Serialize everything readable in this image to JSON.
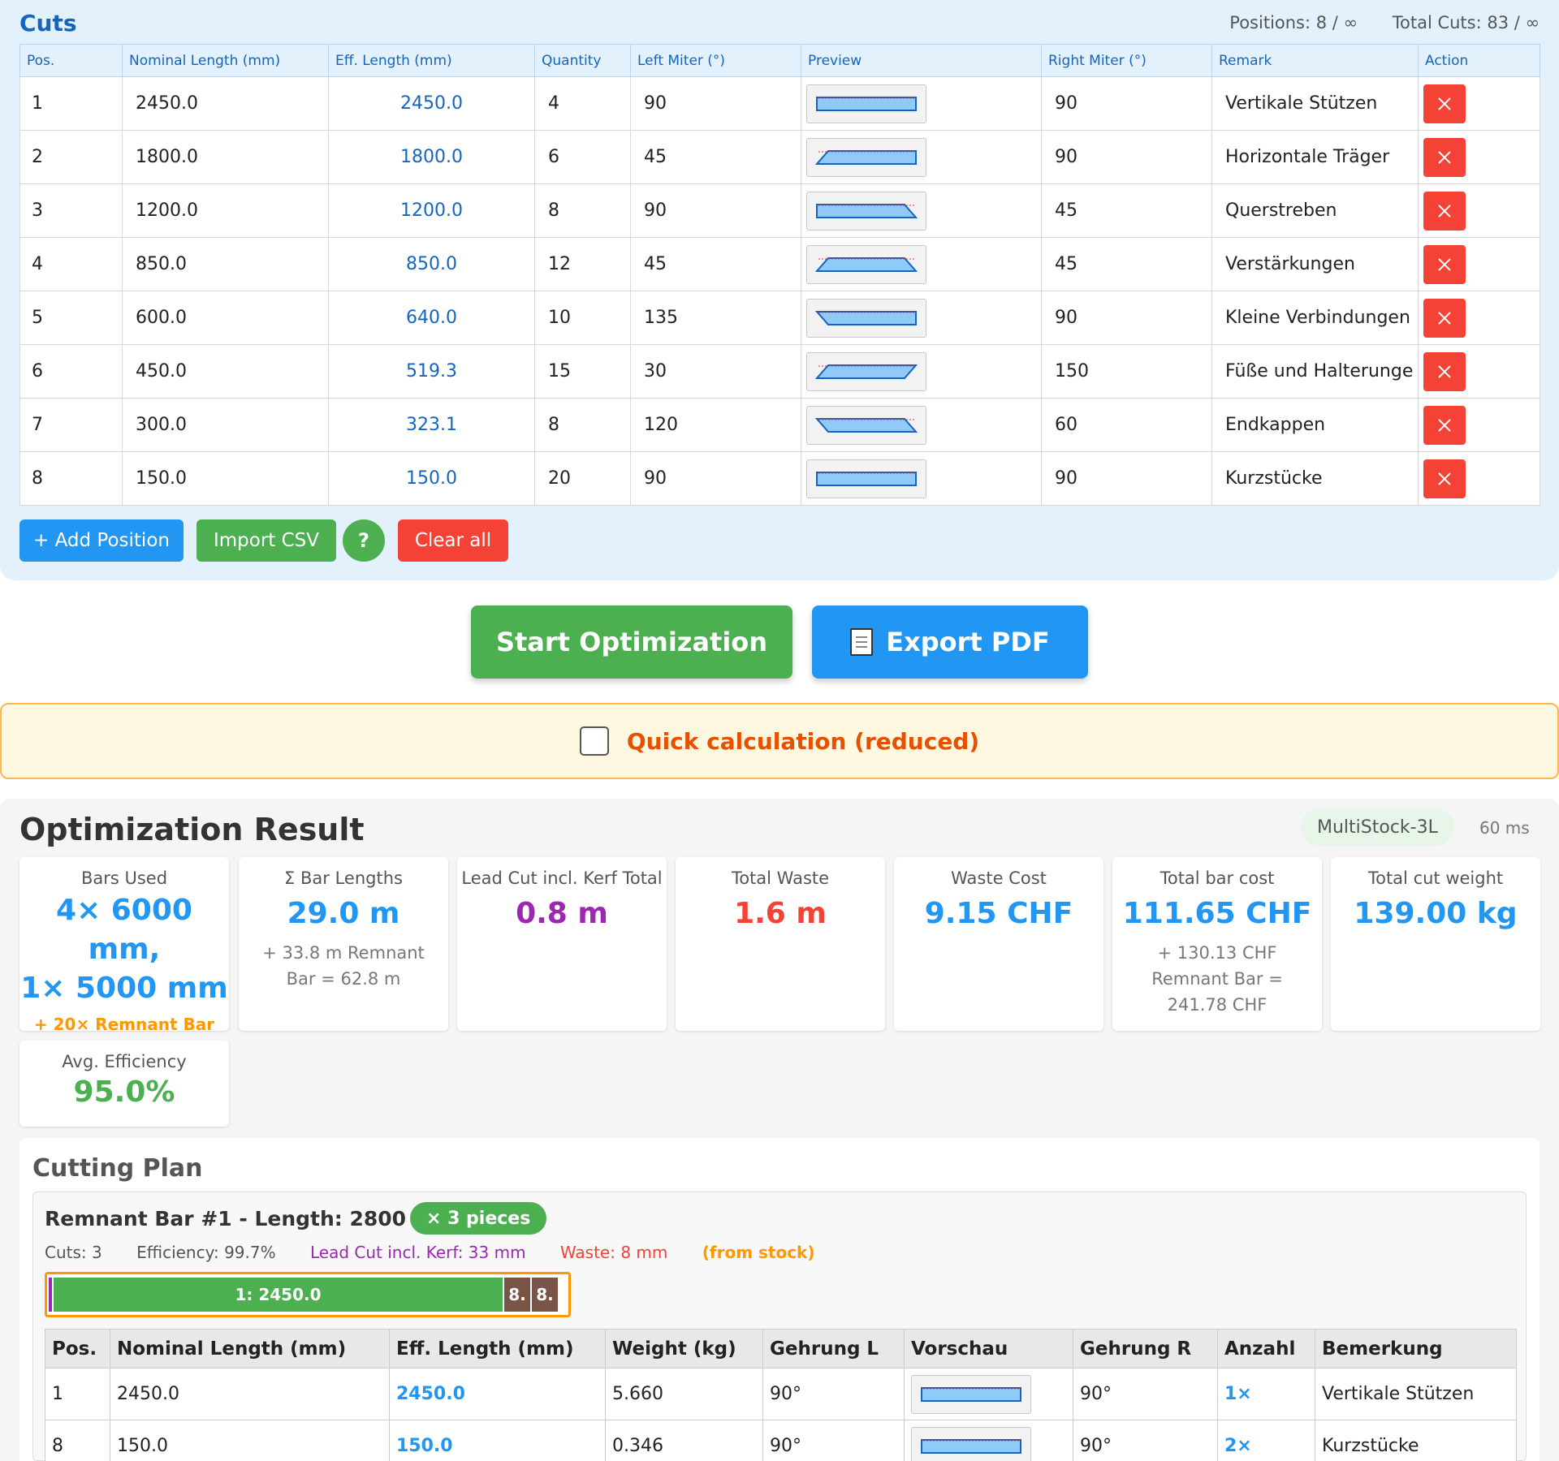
{
  "cuts": {
    "title": "Cuts",
    "positions_stat": "Positions: 8 / ∞",
    "total_cuts_stat": "Total Cuts: 83 / ∞",
    "headers": [
      "Pos.",
      "Nominal Length (mm)",
      "Eff. Length (mm)",
      "Quantity",
      "Left Miter (°)",
      "Preview",
      "Right Miter (°)",
      "Remark",
      "Action"
    ],
    "rows": [
      {
        "pos": "1",
        "nominal": "2450.0",
        "eff": "2450.0",
        "qty": "4",
        "left": "90",
        "right": "90",
        "remark": "Vertikale Stützen"
      },
      {
        "pos": "2",
        "nominal": "1800.0",
        "eff": "1800.0",
        "qty": "6",
        "left": "45",
        "right": "90",
        "remark": "Horizontale Träger"
      },
      {
        "pos": "3",
        "nominal": "1200.0",
        "eff": "1200.0",
        "qty": "8",
        "left": "90",
        "right": "45",
        "remark": "Querstreben"
      },
      {
        "pos": "4",
        "nominal": "850.0",
        "eff": "850.0",
        "qty": "12",
        "left": "45",
        "right": "45",
        "remark": "Verstärkungen"
      },
      {
        "pos": "5",
        "nominal": "600.0",
        "eff": "640.0",
        "qty": "10",
        "left": "135",
        "right": "90",
        "remark": "Kleine Verbindungen"
      },
      {
        "pos": "6",
        "nominal": "450.0",
        "eff": "519.3",
        "qty": "15",
        "left": "30",
        "right": "150",
        "remark": "Füße und Halterunge"
      },
      {
        "pos": "7",
        "nominal": "300.0",
        "eff": "323.1",
        "qty": "8",
        "left": "120",
        "right": "60",
        "remark": "Endkappen"
      },
      {
        "pos": "8",
        "nominal": "150.0",
        "eff": "150.0",
        "qty": "20",
        "left": "90",
        "right": "90",
        "remark": "Kurzstücke"
      }
    ],
    "add_label": "+ Add Position",
    "import_label": "Import CSV",
    "help_label": "?",
    "clear_label": "Clear all"
  },
  "actions": {
    "start_label": "Start Optimization",
    "export_label": "Export PDF",
    "export_icon": "document-icon"
  },
  "quick": {
    "label": "Quick calculation (reduced)",
    "checked": false
  },
  "result": {
    "title": "Optimization Result",
    "algorithm": "MultiStock-3L",
    "timing": "60 ms",
    "cards": {
      "bars_used": {
        "label": "Bars Used",
        "line1": "4× 6000 mm,",
        "line2": "1× 5000 mm",
        "sub": "+ 20× Remnant Bar"
      },
      "bar_lengths": {
        "label": "Σ Bar Lengths",
        "value": "29.0 m",
        "sub1": "+ 33.8 m Remnant",
        "sub2": "Bar = 62.8 m"
      },
      "lead_cut": {
        "label": "Lead Cut incl. Kerf Total",
        "value": "0.8 m"
      },
      "total_waste": {
        "label": "Total Waste",
        "value": "1.6 m"
      },
      "waste_cost": {
        "label": "Waste Cost",
        "value": "9.15 CHF"
      },
      "bar_cost": {
        "label": "Total bar cost",
        "value": "111.65 CHF",
        "sub1": "+ 130.13 CHF",
        "sub2": "Remnant Bar =",
        "sub3": "241.78 CHF"
      },
      "cut_weight": {
        "label": "Total cut weight",
        "value": "139.00 kg"
      },
      "efficiency": {
        "label": "Avg. Efficiency",
        "value": "95.0%"
      }
    },
    "colors": {
      "blue": "#2196f3",
      "purple": "#9c27b0",
      "red": "#f44336",
      "green": "#4caf50",
      "orange": "#ff9800"
    }
  },
  "plan": {
    "title": "Cutting Plan",
    "bar": {
      "title": "Remnant Bar #1 - Length: 2800 mm",
      "pieces": "× 3 pieces",
      "cuts": "Cuts: 3",
      "efficiency": "Efficiency: 99.7%",
      "lead": "Lead Cut incl. Kerf: 33 mm",
      "waste": "Waste: 8 mm",
      "source": "(from stock)",
      "segments": [
        {
          "label": "1: 2450.0",
          "length_mm": 2450
        },
        {
          "label": "8.",
          "length_mm": 150
        },
        {
          "label": "8.",
          "length_mm": 150
        }
      ]
    },
    "headers": [
      "Pos.",
      "Nominal Length (mm)",
      "Eff. Length (mm)",
      "Weight (kg)",
      "Gehrung L",
      "Vorschau",
      "Gehrung R",
      "Anzahl",
      "Bemerkung"
    ],
    "rows": [
      {
        "pos": "1",
        "nominal": "2450.0",
        "eff": "2450.0",
        "weight": "5.660",
        "gl": "90°",
        "gr": "90°",
        "count": "1×",
        "remark": "Vertikale Stützen"
      },
      {
        "pos": "8",
        "nominal": "150.0",
        "eff": "150.0",
        "weight": "0.346",
        "gl": "90°",
        "gr": "90°",
        "count": "2×",
        "remark": "Kurzstücke"
      }
    ]
  }
}
